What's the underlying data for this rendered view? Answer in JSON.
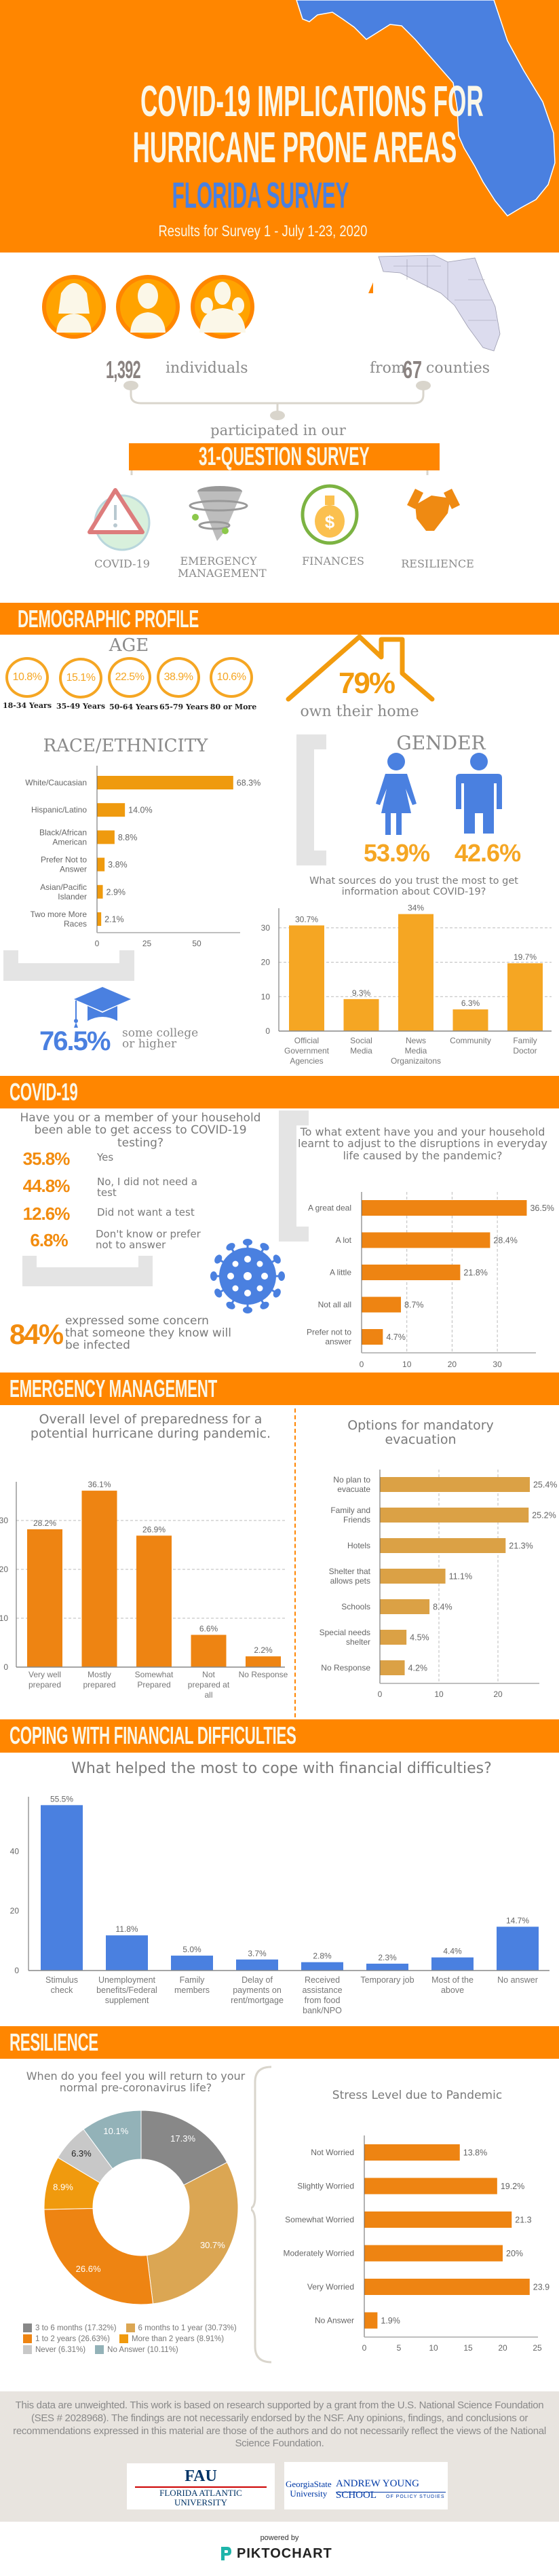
{
  "header": {
    "title_line1": "COVID-19 IMPLICATIONS FOR",
    "title_line2": "HURRICANE PRONE AREAS",
    "survey_name": "FLORIDA SURVEY",
    "subtitle": "Results for Survey 1 - July 1-23, 2020"
  },
  "overview": {
    "individuals_count": "1,392",
    "individuals_label": "individuals",
    "from_label": "from",
    "counties_count": "67",
    "counties_label": "counties",
    "participated_label": "participated in our",
    "survey_label": "31-QUESTION SURVEY",
    "topics": [
      {
        "label": "COVID-19",
        "icon": "virus-warning-icon"
      },
      {
        "label": "EMERGENCY MANAGEMENT",
        "icon": "tornado-icon"
      },
      {
        "label": "FINANCES",
        "icon": "money-bag-icon"
      },
      {
        "label": "RESILIENCE",
        "icon": "handshake-icon"
      }
    ]
  },
  "demographic": {
    "section_title": "DEMOGRAPHIC PROFILE",
    "age": {
      "title": "AGE",
      "groups": [
        {
          "pct": "10.8%",
          "label": "18-34 Years"
        },
        {
          "pct": "15.1%",
          "label": "35-49 Years"
        },
        {
          "pct": "22.5%",
          "label": "50-64 Years"
        },
        {
          "pct": "38.9%",
          "label": "65-79 Years"
        },
        {
          "pct": "10.6%",
          "label": "80 or More"
        }
      ]
    },
    "home": {
      "pct": "79%",
      "label": "own their home"
    },
    "race_title": "RACE/ETHNICITY",
    "gender": {
      "title": "GENDER",
      "female_pct": "53.9%",
      "male_pct": "42.6%"
    },
    "education": {
      "pct": "76.5%",
      "label": "some college or higher"
    },
    "sources_question": "What sources do you trust the most to get information about COVID-19?"
  },
  "covid": {
    "section_title": "COVID-19",
    "testing_question": "Have you or a member of your household been able to get access to COVID-19 testing?",
    "testing_answers": [
      {
        "pct": "35.8%",
        "label": "Yes"
      },
      {
        "pct": "44.8%",
        "label": "No, I did not need a test"
      },
      {
        "pct": "12.6%",
        "label": "Did not want a test"
      },
      {
        "pct": "6.8%",
        "label": "Don't know or prefer not to answer"
      }
    ],
    "concern_pct": "84%",
    "concern_label": "expressed some concern that someone they know will be infected",
    "adjust_question": "To what extent have you and your household learnt to adjust to the disruptions in everyday life caused by the pandemic?"
  },
  "emergency": {
    "section_title": "EMERGENCY MANAGEMENT",
    "prep_question": "Overall level of preparedness for a potential hurricane during pandemic.",
    "evac_question": "Options for mandatory evacuation"
  },
  "financial": {
    "section_title": "COPING WITH FINANCIAL DIFFICULTIES",
    "question": "What helped the most to cope with financial difficulties?"
  },
  "resilience": {
    "section_title": "RESILIENCE",
    "return_question": "When do you feel you will return to your normal pre-coronavirus life?",
    "stress_question": "Stress Level due to Pandemic",
    "legend": [
      "3 to 6 months (17.32%)",
      "6 months to 1 year (30.73%)",
      "1 to 2 years (26.63%)",
      "More than 2 years (8.91%)",
      "Never (6.31%)",
      "No Answer (10.11%)"
    ]
  },
  "footer": {
    "disclaimer": "This data are unweighted. This work is based on research supported by a grant from the U.S. National Science Foundation (SES # 2028968). The findings are not necessarily endorsed by the NSF. Any opinions, findings, and conclusions or recommendations expressed in this material are those of the authors and do not necessarily reflect the views of the National Science Foundation.",
    "logo_fau": "FAU FLORIDA ATLANTIC UNIVERSITY",
    "logo_gsu": "Georgia State University ANDREW YOUNG SCHOOL OF POLICY STUDIES",
    "powered_by": "powered by",
    "piktochart": "PIKTOCHART"
  },
  "colors": {
    "brand_orange": "#FF8600",
    "accent_blue": "#4A80E0",
    "pct_orange": "#F5A623"
  },
  "chart_data": [
    {
      "type": "bar",
      "orientation": "horizontal",
      "categories": [
        "White/Caucasian",
        "Hispanic/Latino",
        "Black/African American",
        "Prefer Not to Answer",
        "Asian/Pacific Islander",
        "Two more More Races"
      ],
      "values": [
        68.3,
        14.0,
        8.8,
        3.8,
        2.9,
        2.1
      ],
      "labels": [
        "68.3%",
        "14.0%",
        "8.8%",
        "3.8%",
        "2.9%",
        "2.1%"
      ],
      "ticks": [
        0,
        25,
        50
      ],
      "xlim": [
        0,
        72
      ],
      "grid": false,
      "color": "#EF9A0E"
    },
    {
      "type": "bar",
      "categories": [
        "Official Government Agencies",
        "Social Media",
        "News Media Organizaitons",
        "Community",
        "Family Doctor"
      ],
      "values": [
        30.7,
        9.3,
        34,
        6.3,
        19.7
      ],
      "labels": [
        "30.7%",
        "9.3%",
        "34%",
        "6.3%",
        "19.7%"
      ],
      "ticks": [
        0,
        10,
        20,
        30
      ],
      "ylim": [
        0,
        36
      ],
      "grid": true,
      "color": "#F5A623"
    },
    {
      "type": "bar",
      "orientation": "horizontal",
      "categories": [
        "A great deal",
        "A lot",
        "A little",
        "Not all all",
        "Prefer not to answer"
      ],
      "values": [
        36.5,
        28.4,
        21.8,
        8.7,
        4.7
      ],
      "labels": [
        "36.5%",
        "28.4%",
        "21.8%",
        "8.7%",
        "4.7%"
      ],
      "ticks": [
        0,
        10,
        20,
        30
      ],
      "xlim": [
        0,
        38
      ],
      "grid": true,
      "color": "#EE8412"
    },
    {
      "type": "bar",
      "categories": [
        "Very well prepared",
        "Mostly prepared",
        "Somewhat Prepared",
        "Not prepared at all",
        "No Response"
      ],
      "values": [
        28.2,
        36.1,
        26.9,
        6.6,
        2.2
      ],
      "labels": [
        "28.2%",
        "36.1%",
        "26.9%",
        "6.6%",
        "2.2%"
      ],
      "ticks": [
        0,
        10,
        20,
        30
      ],
      "ylim": [
        0,
        38
      ],
      "grid": true,
      "color": "#EE8412"
    },
    {
      "type": "bar",
      "orientation": "horizontal",
      "categories": [
        "No plan to evacuate",
        "Family and Friends",
        "Hotels",
        "Shelter that allows pets",
        "Schools",
        "Special needs shelter",
        "No Response"
      ],
      "values": [
        25.4,
        25.2,
        21.3,
        11.1,
        8.4,
        4.5,
        4.2
      ],
      "labels": [
        "25.4%",
        "25.2%",
        "21.3%",
        "11.1%",
        "8.4%",
        "4.5%",
        "4.2%"
      ],
      "ticks": [
        0,
        10,
        20
      ],
      "xlim": [
        0,
        27
      ],
      "grid": true,
      "color": "#DBA145"
    },
    {
      "type": "bar",
      "categories": [
        "Stimulus check",
        "Unemployment benefits/Federal supplement",
        "Family members",
        "Delay of payments on rent/mortgage",
        "Received assistance from food bank/NPO",
        "Temporary job",
        "Most of the above",
        "No answer"
      ],
      "values": [
        55.5,
        11.8,
        5.0,
        3.7,
        2.8,
        2.3,
        4.4,
        14.7
      ],
      "labels": [
        "55.5%",
        "11.8%",
        "5.0%",
        "3.7%",
        "2.8%",
        "2.3%",
        "4.4%",
        "14.7%"
      ],
      "ticks": [
        0,
        20,
        40
      ],
      "ylim": [
        0,
        58
      ],
      "grid": false,
      "color": "#4A80E0"
    },
    {
      "type": "pie",
      "donut": true,
      "categories": [
        "3 to 6 months",
        "6 months to 1 year",
        "1 to 2 years",
        "More than 2 years",
        "Never",
        "No Answer"
      ],
      "values": [
        17.32,
        30.73,
        26.63,
        8.91,
        6.31,
        10.11
      ],
      "labels": [
        "17.3%",
        "30.7%",
        "26.6%",
        "8.9%",
        "6.3%",
        "10.1%"
      ],
      "colors": [
        "#888888",
        "#DBA653",
        "#EE8412",
        "#F09A0E",
        "#C8C8C8",
        "#93B2B8"
      ],
      "legend": "bottom"
    },
    {
      "type": "bar",
      "orientation": "horizontal",
      "categories": [
        "Not Worried",
        "Slightly Worried",
        "Somewhat Worried",
        "Moderately Worried",
        "Very Worried",
        "No Answer"
      ],
      "values": [
        13.8,
        19.2,
        21.3,
        20,
        23.9,
        1.9
      ],
      "labels": [
        "13.8%",
        "19.2%",
        "21.3",
        "20%",
        "23.9",
        "1.9%"
      ],
      "ticks": [
        0,
        5,
        10,
        15,
        20,
        25
      ],
      "xlim": [
        0,
        25
      ],
      "grid": false,
      "color": "#EE8412"
    }
  ]
}
